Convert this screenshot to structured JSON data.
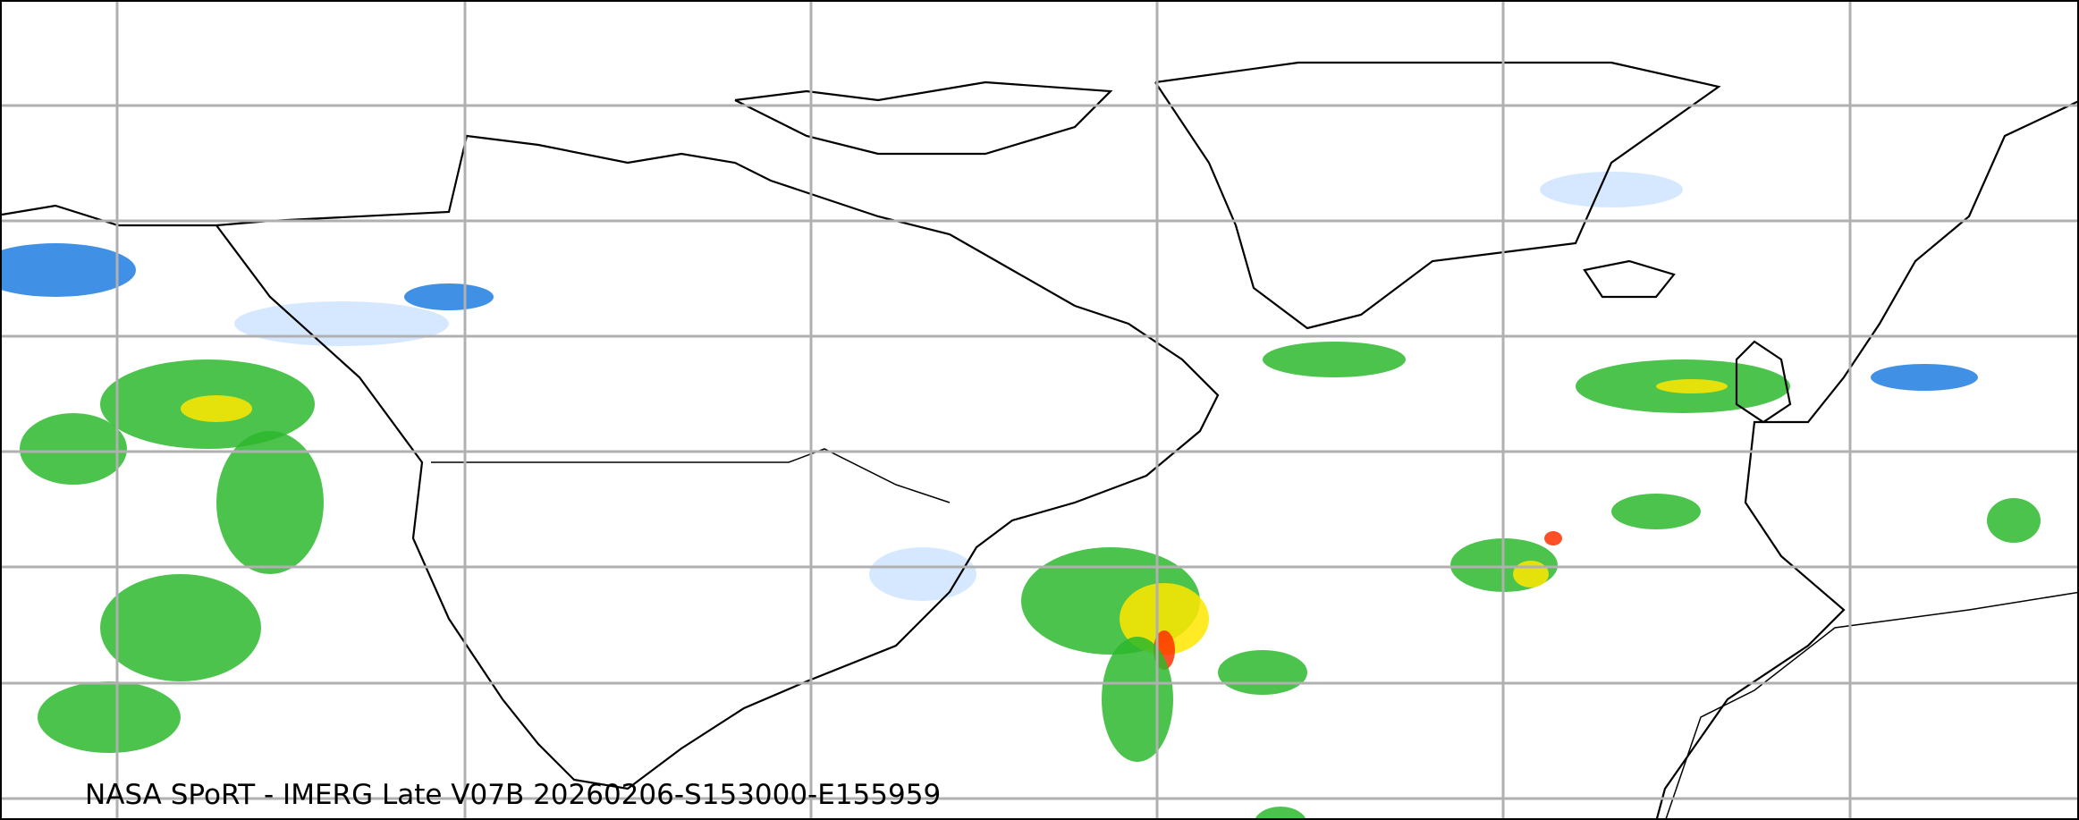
{
  "caption": "NASA SPoRT - IMERG Late V07B 20260206-S153000-E155959",
  "colors": {
    "gridline": "#b0b0b0",
    "coastline": "#000000",
    "snow_light": "#cfe4ff",
    "snow_heavy": "#1e7de0",
    "rain_light": "#2db82d",
    "rain_moderate": "#ffe600",
    "rain_heavy": "#ff3000"
  }
}
